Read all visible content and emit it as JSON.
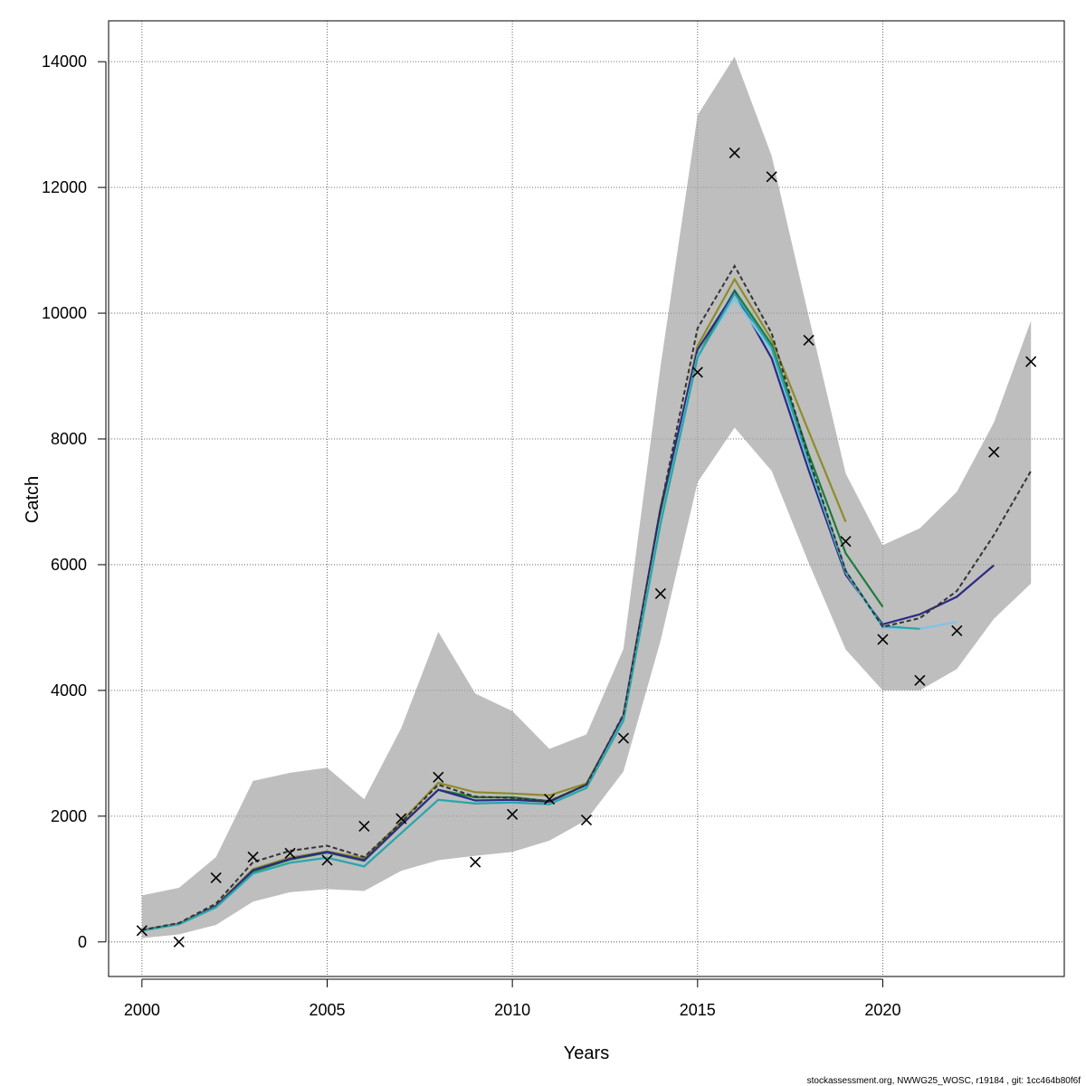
{
  "chart_data": {
    "type": "line",
    "xlabel": "Years",
    "ylabel": "Catch",
    "xlim": [
      1999.1,
      2024.9
    ],
    "ylim": [
      -550,
      14650
    ],
    "xticks": [
      2000,
      2005,
      2010,
      2015,
      2020
    ],
    "yticks": [
      0,
      2000,
      4000,
      6000,
      8000,
      10000,
      12000,
      14000
    ],
    "xtick_labels": [
      "2000",
      "2005",
      "2010",
      "2015",
      "2020"
    ],
    "ytick_labels": [
      "0",
      "2000",
      "4000",
      "6000",
      "8000",
      "10000",
      "12000",
      "14000"
    ],
    "grid": true,
    "footer": "stockassessment.org, NWWG25_WOSC, r19184 , git: 1cc464b80f6f",
    "confidence_band": {
      "x": [
        2000,
        2001,
        2002,
        2003,
        2004,
        2005,
        2006,
        2007,
        2008,
        2009,
        2010,
        2011,
        2012,
        2013,
        2014,
        2015,
        2016,
        2017,
        2018,
        2019,
        2020,
        2021,
        2022,
        2023,
        2024
      ],
      "upper": [
        740,
        860,
        1350,
        2560,
        2690,
        2770,
        2270,
        3400,
        4930,
        3950,
        3670,
        3070,
        3300,
        4660,
        9160,
        13150,
        14080,
        12500,
        9950,
        7450,
        6310,
        6580,
        7160,
        8260,
        9880
      ],
      "lower": [
        60,
        120,
        270,
        640,
        790,
        840,
        810,
        1130,
        1300,
        1370,
        1430,
        1610,
        1940,
        2710,
        4790,
        7310,
        8180,
        7490,
        6030,
        4650,
        4000,
        4000,
        4340,
        5140,
        5700
      ],
      "color": "#bebebe"
    },
    "observed": {
      "x": [
        2000,
        2001,
        2002,
        2003,
        2004,
        2005,
        2006,
        2007,
        2008,
        2009,
        2010,
        2011,
        2012,
        2013,
        2014,
        2015,
        2016,
        2017,
        2018,
        2019,
        2020,
        2021,
        2022,
        2023,
        2024
      ],
      "y": [
        180,
        0,
        1020,
        1350,
        1410,
        1300,
        1840,
        1960,
        2620,
        1270,
        2030,
        2270,
        1940,
        3240,
        5540,
        9060,
        12550,
        12170,
        9570,
        6370,
        4810,
        4160,
        4950,
        7790,
        9230
      ],
      "marker": "x",
      "color": "#000000"
    },
    "series": [
      {
        "x": [
          2000,
          2001,
          2002,
          2003,
          2004,
          2005,
          2006,
          2007,
          2008,
          2009,
          2010,
          2011,
          2012,
          2013,
          2014,
          2015,
          2016,
          2017,
          2018,
          2019
        ],
        "values": [
          190,
          290,
          580,
          1160,
          1340,
          1440,
          1330,
          1910,
          2530,
          2380,
          2360,
          2330,
          2520,
          3590,
          6800,
          9480,
          10540,
          9580,
          8120,
          6680
        ],
        "color": "#8c8c2a"
      },
      {
        "x": [
          2000,
          2001,
          2002,
          2003,
          2004,
          2005,
          2006,
          2007,
          2008,
          2009,
          2010,
          2011,
          2012,
          2013,
          2014,
          2015,
          2016,
          2017,
          2018,
          2019,
          2020
        ],
        "values": [
          185,
          285,
          560,
          1120,
          1310,
          1420,
          1290,
          1860,
          2420,
          2300,
          2300,
          2240,
          2500,
          3570,
          6750,
          9320,
          10360,
          9500,
          7760,
          6180,
          5330
        ],
        "color": "#1e7b3c"
      },
      {
        "x": [
          2000,
          2001,
          2002,
          2003,
          2004,
          2005,
          2006,
          2007,
          2008,
          2009,
          2010,
          2011,
          2012,
          2013,
          2014,
          2015,
          2016,
          2017,
          2018,
          2019,
          2020,
          2021,
          2022,
          2023
        ],
        "values": [
          185,
          285,
          570,
          1140,
          1320,
          1430,
          1300,
          1860,
          2420,
          2250,
          2260,
          2230,
          2500,
          3600,
          6900,
          9420,
          10330,
          9280,
          7500,
          5840,
          5050,
          5210,
          5490,
          5990
        ],
        "color": "#2b2a83"
      },
      {
        "x": [
          2000,
          2001,
          2002,
          2003,
          2004,
          2005,
          2006,
          2007,
          2008,
          2009,
          2010,
          2011,
          2012,
          2013,
          2014,
          2015,
          2016,
          2017,
          2018,
          2019,
          2020,
          2021,
          2022
        ],
        "values": [
          180,
          280,
          550,
          1080,
          1260,
          1330,
          1210,
          1730,
          2260,
          2210,
          2210,
          2190,
          2460,
          3540,
          6700,
          9330,
          10230,
          9400,
          7600,
          5880,
          5000,
          4980,
          5090
        ],
        "color": "#7ec3e6"
      },
      {
        "x": [
          2000,
          2001,
          2002,
          2003,
          2004,
          2005,
          2006,
          2007,
          2008,
          2009,
          2010,
          2011,
          2012,
          2013,
          2014,
          2015,
          2016,
          2017,
          2018,
          2019,
          2020,
          2021
        ],
        "values": [
          180,
          280,
          550,
          1090,
          1260,
          1340,
          1200,
          1730,
          2260,
          2200,
          2220,
          2190,
          2450,
          3520,
          6650,
          9300,
          10310,
          9450,
          7650,
          5900,
          5020,
          4980
        ],
        "color": "#2aa6a6"
      },
      {
        "x": [
          2000,
          2001,
          2002,
          2003,
          2004,
          2005,
          2006,
          2007,
          2008,
          2009,
          2010,
          2011,
          2012,
          2013,
          2014,
          2015,
          2016,
          2017,
          2018,
          2019,
          2020,
          2021,
          2022,
          2023,
          2024
        ],
        "values": [
          190,
          300,
          610,
          1270,
          1450,
          1530,
          1350,
          1900,
          2500,
          2310,
          2290,
          2240,
          2500,
          3620,
          6900,
          9760,
          10750,
          9680,
          7700,
          5900,
          5010,
          5150,
          5580,
          6470,
          7490
        ],
        "color": "#333333",
        "dashed": true
      }
    ]
  }
}
